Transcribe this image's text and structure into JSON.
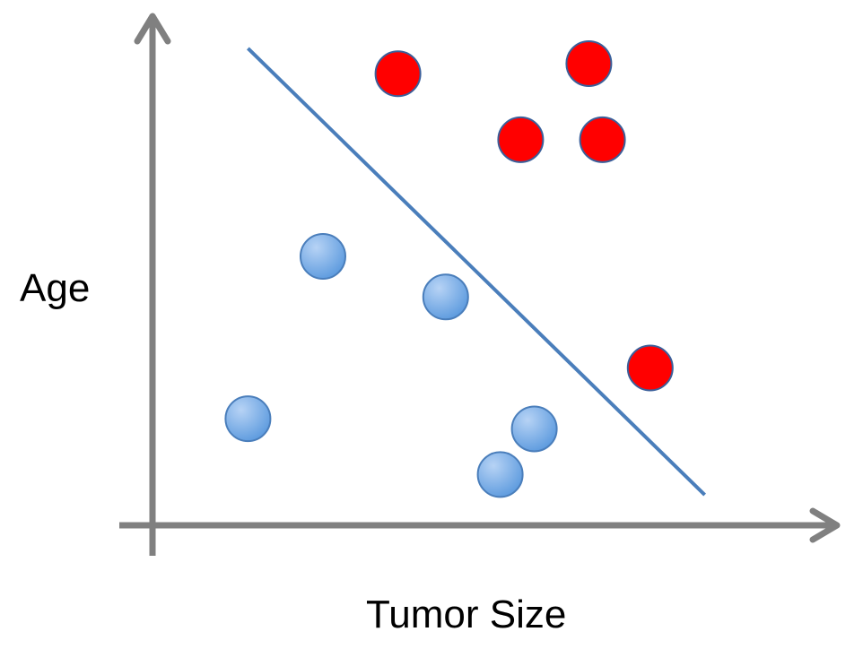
{
  "chart_data": {
    "type": "scatter",
    "title": "",
    "xlabel": "Tumor Size",
    "ylabel": "Age",
    "xlim": [
      0,
      10
    ],
    "ylim": [
      0,
      10
    ],
    "grid": false,
    "axis_color": "#808080",
    "series": [
      {
        "color": "#ff0000",
        "points": [
          {
            "x": 3.6,
            "y": 8.9
          },
          {
            "x": 6.4,
            "y": 9.1
          },
          {
            "x": 5.4,
            "y": 7.6
          },
          {
            "x": 6.6,
            "y": 7.6
          },
          {
            "x": 7.3,
            "y": 3.1
          }
        ]
      },
      {
        "color": "#5c9ade",
        "points": [
          {
            "x": 2.5,
            "y": 5.3
          },
          {
            "x": 4.3,
            "y": 4.5
          },
          {
            "x": 1.4,
            "y": 2.1
          },
          {
            "x": 5.6,
            "y": 1.9
          },
          {
            "x": 5.1,
            "y": 1.0
          }
        ]
      }
    ],
    "decision_boundary": {
      "color": "#4a7ebb",
      "points": [
        {
          "x": 1.4,
          "y": 9.4
        },
        {
          "x": 8.1,
          "y": 0.6
        }
      ]
    }
  }
}
